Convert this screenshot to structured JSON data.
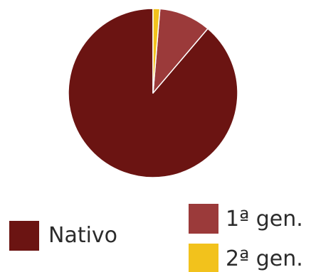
{
  "chart_data": {
    "type": "pie",
    "title": "",
    "slices": [
      {
        "label": "Nativo",
        "value": 88.8,
        "color": "#6b1412"
      },
      {
        "label": "1ª gen.",
        "value": 9.9,
        "color": "#9b3a3a"
      },
      {
        "label": "2ª gen.",
        "value": 1.3,
        "color": "#f2c21c"
      }
    ],
    "legend": [
      {
        "label": "Nativo",
        "color": "#6b1412"
      },
      {
        "label": "1ª gen.",
        "color": "#9b3a3a"
      },
      {
        "label": "2ª gen.",
        "color": "#f2c21c"
      }
    ],
    "legend_placement": "bottom",
    "start_angle": "12 o'clock",
    "direction": "counter-clockwise"
  }
}
